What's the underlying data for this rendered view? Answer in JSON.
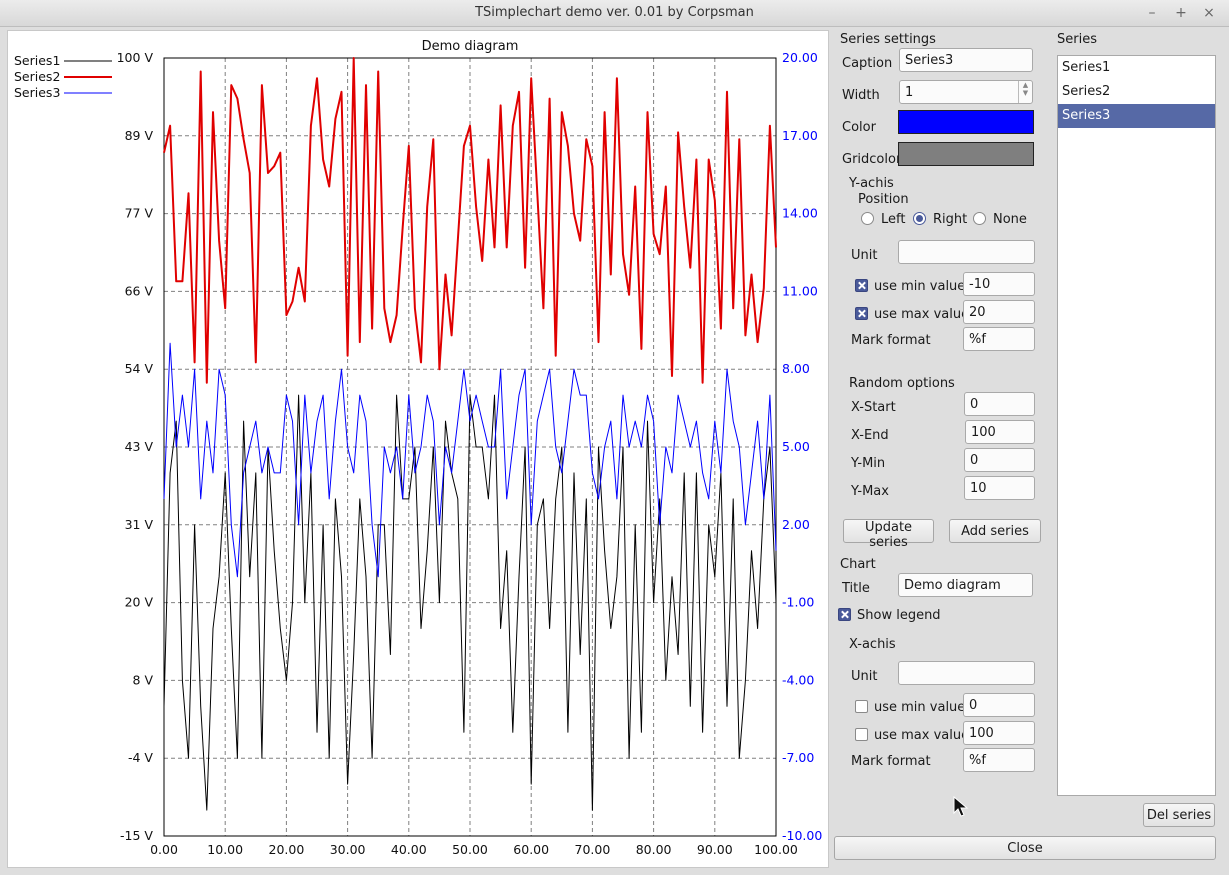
{
  "window": {
    "title": "TSimplechart demo ver. 0.01 by Corpsman"
  },
  "title_buttons": {
    "minimize": "–",
    "maximize": "+",
    "close": "×"
  },
  "chart_data": {
    "type": "line",
    "title": "Demo diagram",
    "legend": {
      "show": true,
      "placement": "top-left"
    },
    "grid": true,
    "xaxis": {
      "range": [
        0,
        100
      ],
      "ticks": [
        "0.00",
        "10.00",
        "20.00",
        "30.00",
        "40.00",
        "50.00",
        "60.00",
        "70.00",
        "80.00",
        "90.00",
        "100.00"
      ]
    },
    "yaxis_left": {
      "range": [
        -15,
        100
      ],
      "ticks": [
        "100 V",
        "89 V",
        "77 V",
        "66 V",
        "54 V",
        "43 V",
        "31 V",
        "20 V",
        "8 V",
        "-4 V",
        "-15 V"
      ],
      "series": "Series2"
    },
    "yaxis_right": {
      "range": [
        -10,
        20
      ],
      "ticks": [
        "20.00",
        "17.00",
        "14.00",
        "11.00",
        "8.00",
        "5.00",
        "2.00",
        "-1.00",
        "-4.00",
        "-7.00",
        "-10.00"
      ],
      "color": "#0000ff",
      "series": "Series3"
    },
    "series": [
      {
        "name": "Series1",
        "color": "#000000",
        "width": 1,
        "axis": "right",
        "y": [
          -5,
          4,
          6,
          -4,
          -7,
          2,
          -5,
          -9,
          -2,
          0,
          4,
          -2,
          -7,
          6,
          0,
          4,
          -7,
          5,
          1,
          -2,
          -4,
          -1,
          7,
          -1,
          4,
          -6,
          2,
          -7,
          3,
          0,
          -8,
          -3,
          3,
          0,
          -7,
          2,
          2,
          -3,
          7,
          3,
          3,
          5,
          -2,
          1,
          5,
          -1,
          6,
          4,
          3,
          -6,
          7,
          5,
          5,
          3,
          7,
          -2,
          1,
          -6,
          0,
          5,
          -8,
          2,
          3,
          -2,
          3,
          5,
          -6,
          4,
          -3,
          3,
          -9,
          5,
          1,
          -2,
          0,
          5,
          -7,
          2,
          -6,
          6,
          -1,
          3,
          -4,
          0,
          -3,
          4,
          -5,
          4,
          -6,
          2,
          0,
          4,
          -5,
          3,
          -7,
          -4,
          1,
          -2,
          3,
          5,
          -1
        ]
      },
      {
        "name": "Series2",
        "color": "#e00000",
        "width": 2,
        "axis": "left",
        "y": [
          86,
          90,
          67,
          67,
          80,
          55,
          98,
          52,
          92,
          73,
          63,
          96,
          94,
          88,
          83,
          55,
          96,
          83,
          84,
          86,
          62,
          64,
          69,
          64,
          90,
          97,
          85,
          81,
          91,
          95,
          56,
          100,
          58,
          96,
          60,
          98,
          63,
          58,
          62,
          75,
          87,
          63,
          55,
          78,
          88,
          54,
          68,
          59,
          73,
          87,
          90,
          78,
          70,
          85,
          72,
          93,
          72,
          90,
          95,
          69,
          97,
          80,
          63,
          94,
          56,
          92,
          87,
          77,
          73,
          88,
          84,
          58,
          92,
          68,
          97,
          71,
          65,
          81,
          57,
          92,
          74,
          71,
          81,
          53,
          89,
          78,
          69,
          85,
          52,
          85,
          79,
          60,
          95,
          63,
          88,
          59,
          68,
          58,
          66,
          90,
          72
        ]
      },
      {
        "name": "Series3",
        "color": "#0000ff",
        "width": 1,
        "axis": "right",
        "y": [
          3,
          9,
          5,
          7,
          5,
          8,
          3,
          6,
          4,
          8,
          7,
          2,
          0,
          4,
          5,
          6,
          4,
          5,
          4,
          4,
          7,
          6,
          2,
          7,
          4,
          6,
          7,
          3,
          6,
          8,
          5,
          4,
          7,
          6,
          2,
          0,
          5,
          4,
          5,
          3,
          7,
          4,
          5,
          7,
          6,
          2,
          5,
          4,
          6,
          8,
          6,
          7,
          6,
          5,
          5,
          8,
          3,
          5,
          7,
          8,
          2,
          6,
          7,
          8,
          5,
          4,
          6,
          8,
          7,
          7,
          4,
          3,
          5,
          6,
          3,
          7,
          5,
          6,
          5,
          7,
          6,
          2,
          5,
          4,
          7,
          6,
          5,
          6,
          4,
          3,
          6,
          4,
          8,
          6,
          5,
          2,
          4,
          6,
          3,
          7,
          1
        ]
      }
    ]
  },
  "settings": {
    "series_settings_heading": "Series settings",
    "caption_label": "Caption",
    "caption_value": "Series3",
    "width_label": "Width",
    "width_value": "1",
    "color_label": "Color",
    "color_value": "#0000ff",
    "gridcolor_label": "Gridcolor",
    "gridcolor_value": "#7f7f7f",
    "yachis_heading": "Y-achis",
    "position_label": "Position",
    "pos_left": "Left",
    "pos_right": "Right",
    "pos_none": "None",
    "y_unit_label": "Unit",
    "y_unit_value": "",
    "y_use_min_label": "use min value",
    "y_min_value": "-10",
    "y_use_max_label": "use max value",
    "y_max_value": "20",
    "y_mark_format_label": "Mark format",
    "y_mark_format_value": "%f",
    "random_heading": "Random options",
    "xstart_label": "X-Start",
    "xstart_value": "0",
    "xend_label": "X-End",
    "xend_value": "100",
    "ymin_label": "Y-Min",
    "ymin_value": "0",
    "ymax_label": "Y-Max",
    "ymax_value": "10",
    "update_series_button": "Update series",
    "add_series_button": "Add series",
    "chart_heading": "Chart",
    "title_label": "Title",
    "title_value": "Demo diagram",
    "show_legend_label": "Show legend",
    "xachis_heading": "X-achis",
    "x_unit_label": "Unit",
    "x_unit_value": "",
    "x_use_min_label": "use min value",
    "x_min_value": "0",
    "x_use_max_label": "use max value",
    "x_max_value": "100",
    "x_mark_format_label": "Mark format",
    "x_mark_format_value": "%f"
  },
  "series_list": {
    "heading": "Series",
    "items": [
      "Series1",
      "Series2",
      "Series3"
    ],
    "selected": "Series3",
    "del_button": "Del series"
  },
  "close_button": "Close"
}
